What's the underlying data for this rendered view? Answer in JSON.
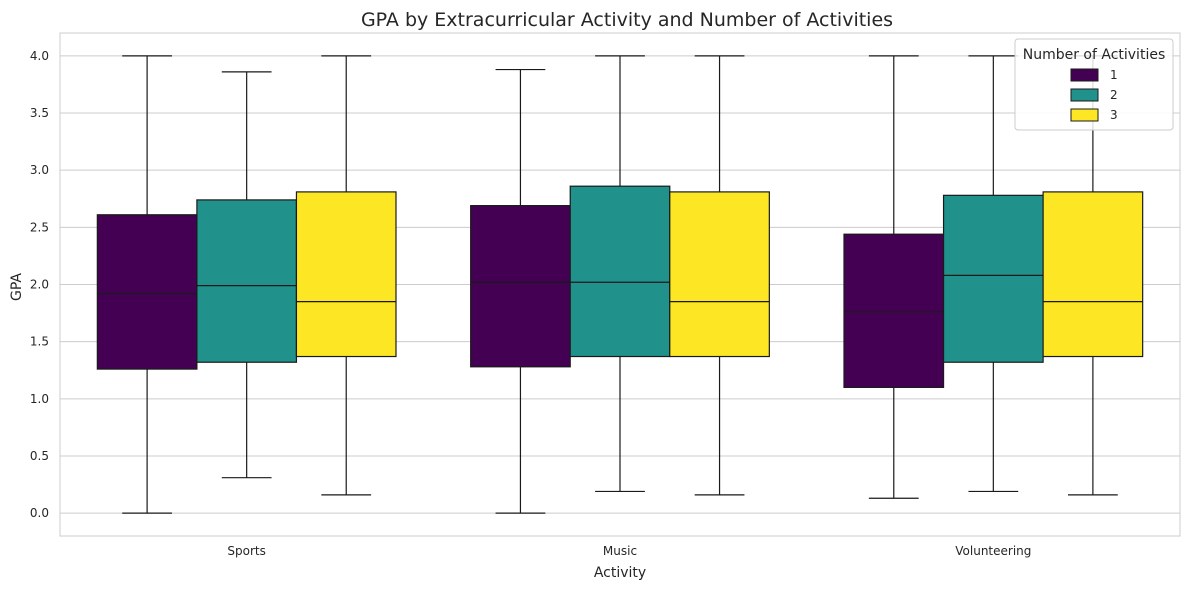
{
  "chart_data": {
    "type": "boxplot",
    "title": "GPA by Extracurricular Activity and Number of Activities",
    "xlabel": "Activity",
    "ylabel": "GPA",
    "ylim": [
      -0.2,
      4.2
    ],
    "yticks": [
      0.0,
      0.5,
      1.0,
      1.5,
      2.0,
      2.5,
      3.0,
      3.5,
      4.0
    ],
    "ytick_labels": [
      "0.0",
      "0.5",
      "1.0",
      "1.5",
      "2.0",
      "2.5",
      "3.0",
      "3.5",
      "4.0"
    ],
    "grid": true,
    "categories": [
      "Sports",
      "Music",
      "Volunteering"
    ],
    "legend": {
      "title": "Number of Activities",
      "placement": "top-right"
    },
    "series": [
      {
        "name": "1",
        "color": "#440154",
        "boxes": [
          {
            "whisker_low": 0.0,
            "q1": 1.26,
            "median": 1.92,
            "q3": 2.61,
            "whisker_high": 4.0
          },
          {
            "whisker_low": 0.0,
            "q1": 1.28,
            "median": 2.02,
            "q3": 2.69,
            "whisker_high": 3.88
          },
          {
            "whisker_low": 0.13,
            "q1": 1.1,
            "median": 1.76,
            "q3": 2.44,
            "whisker_high": 4.0
          }
        ]
      },
      {
        "name": "2",
        "color": "#21918c",
        "boxes": [
          {
            "whisker_low": 0.31,
            "q1": 1.32,
            "median": 1.99,
            "q3": 2.74,
            "whisker_high": 3.86
          },
          {
            "whisker_low": 0.19,
            "q1": 1.37,
            "median": 2.02,
            "q3": 2.86,
            "whisker_high": 4.0
          },
          {
            "whisker_low": 0.19,
            "q1": 1.32,
            "median": 2.08,
            "q3": 2.78,
            "whisker_high": 4.0
          }
        ]
      },
      {
        "name": "3",
        "color": "#fde725",
        "boxes": [
          {
            "whisker_low": 0.16,
            "q1": 1.37,
            "median": 1.85,
            "q3": 2.81,
            "whisker_high": 4.0
          },
          {
            "whisker_low": 0.16,
            "q1": 1.37,
            "median": 1.85,
            "q3": 2.81,
            "whisker_high": 4.0
          },
          {
            "whisker_low": 0.16,
            "q1": 1.37,
            "median": 1.85,
            "q3": 2.81,
            "whisker_high": 4.0
          }
        ]
      }
    ]
  }
}
